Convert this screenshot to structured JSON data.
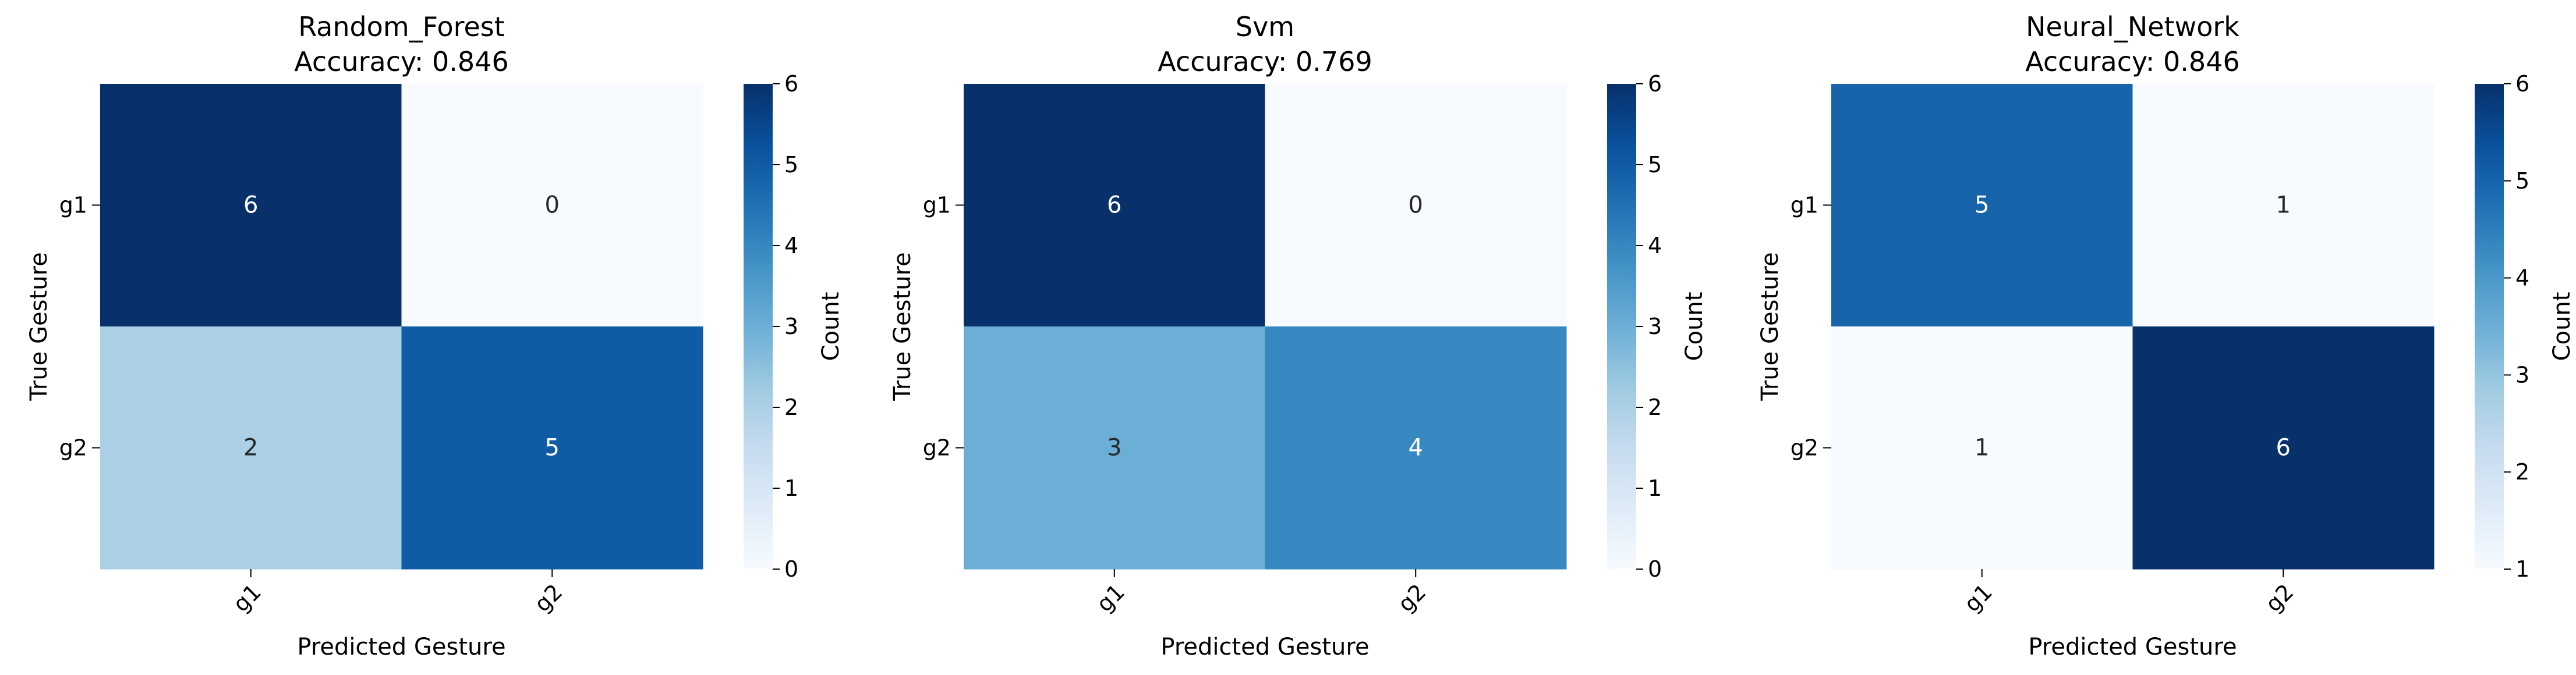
{
  "chart_data": [
    {
      "type": "heatmap",
      "title": "Random_Forest",
      "subtitle": "Accuracy: 0.846",
      "xlabel": "Predicted Gesture",
      "ylabel": "True Gesture",
      "x_categories": [
        "g1",
        "g2"
      ],
      "y_categories": [
        "g1",
        "g2"
      ],
      "values": [
        [
          6,
          0
        ],
        [
          2,
          5
        ]
      ],
      "colorbar": {
        "label": "Count",
        "min": 0,
        "max": 6,
        "ticks": [
          0,
          1,
          2,
          3,
          4,
          5,
          6
        ]
      },
      "colormap": "Blues"
    },
    {
      "type": "heatmap",
      "title": "Svm",
      "subtitle": "Accuracy: 0.769",
      "xlabel": "Predicted Gesture",
      "ylabel": "True Gesture",
      "x_categories": [
        "g1",
        "g2"
      ],
      "y_categories": [
        "g1",
        "g2"
      ],
      "values": [
        [
          6,
          0
        ],
        [
          3,
          4
        ]
      ],
      "colorbar": {
        "label": "Count",
        "min": 0,
        "max": 6,
        "ticks": [
          0,
          1,
          2,
          3,
          4,
          5,
          6
        ]
      },
      "colormap": "Blues"
    },
    {
      "type": "heatmap",
      "title": "Neural_Network",
      "subtitle": "Accuracy: 0.846",
      "xlabel": "Predicted Gesture",
      "ylabel": "True Gesture",
      "x_categories": [
        "g1",
        "g2"
      ],
      "y_categories": [
        "g1",
        "g2"
      ],
      "values": [
        [
          5,
          1
        ],
        [
          1,
          6
        ]
      ],
      "colorbar": {
        "label": "Count",
        "min": 1,
        "max": 6,
        "ticks": [
          1,
          2,
          3,
          4,
          5,
          6
        ]
      },
      "colormap": "Blues"
    }
  ]
}
